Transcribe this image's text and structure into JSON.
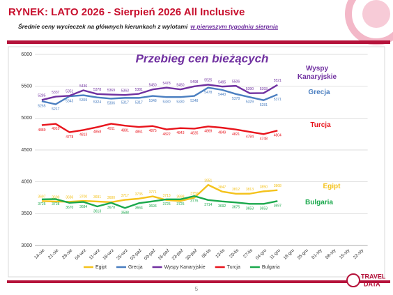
{
  "header": {
    "title": "RYNEK: LATO 2026 - Sierpień 2026 All Inclusive",
    "subtitle": {
      "text": "Średnie ceny wycieczek na głównych kierunkach z wylotami",
      "emphasis": "w pierwszym tygodniu sierpnia"
    }
  },
  "chart_data": {
    "type": "line",
    "title": "Przebieg cen bieżących",
    "categories": [
      "14-sie",
      "21-sie",
      "28-sie",
      "04-wrz",
      "11-wrz",
      "18-wrz",
      "25-wrz",
      "02-paź",
      "09-paź",
      "16-paź",
      "23-paź",
      "30-paź",
      "06-lis",
      "13-lis",
      "20-lis",
      "27-lis",
      "04-gru",
      "11-gru",
      "18-gru",
      "25-gru",
      "01-sty",
      "08-sty",
      "15-sty",
      "22-sty"
    ],
    "series": [
      {
        "name": "Egipt",
        "color": "#f4c21b",
        "values": [
          3697,
          3690,
          3686,
          3700,
          3691,
          3680,
          3717,
          3735,
          3771,
          3713,
          3698,
          3750,
          3951,
          3847,
          3812,
          3813,
          3850,
          3868,
          null,
          null,
          null,
          null,
          null,
          null
        ]
      },
      {
        "name": "Grecja",
        "color": "#4a7ec0",
        "values": [
          5265,
          5217,
          5343,
          5359,
          5324,
          5306,
          5317,
          5317,
          5348,
          5330,
          5330,
          5348,
          5478,
          5443,
          5378,
          5329,
          5281,
          5371,
          null,
          null,
          null,
          null,
          null,
          null
        ]
      },
      {
        "name": "Wyspy Kanaryjskie",
        "color": "#7030a0",
        "values": [
          5285,
          5337,
          5351,
          5436,
          5378,
          5369,
          5363,
          5381,
          5450,
          5478,
          5450,
          5498,
          5525,
          5495,
          5506,
          5390,
          5393,
          5521,
          null,
          null,
          null,
          null,
          null,
          null
        ]
      },
      {
        "name": "Turcja",
        "color": "#e8141c",
        "values": [
          4889,
          4910,
          4778,
          4813,
          4858,
          4911,
          4881,
          4861,
          4875,
          4822,
          4843,
          4835,
          4869,
          4849,
          4821,
          4784,
          4748,
          4804,
          null,
          null,
          null,
          null,
          null,
          null
        ]
      },
      {
        "name": "Bulgaria",
        "color": "#1aa84c",
        "values": [
          3725,
          3728,
          3670,
          3684,
          3613,
          3670,
          3588,
          3664,
          3693,
          3725,
          3725,
          3776,
          3714,
          3692,
          3675,
          3653,
          3653,
          3697,
          null,
          null,
          null,
          null,
          null,
          null
        ]
      }
    ],
    "ylim": [
      3000,
      6000
    ],
    "yticks": [
      3000,
      3500,
      4000,
      4500,
      5000,
      5500,
      6000
    ],
    "grid": true,
    "legend": "bottom"
  },
  "footer": {
    "page_number": "5",
    "logo": [
      "TRAVEL",
      "DATA"
    ]
  }
}
